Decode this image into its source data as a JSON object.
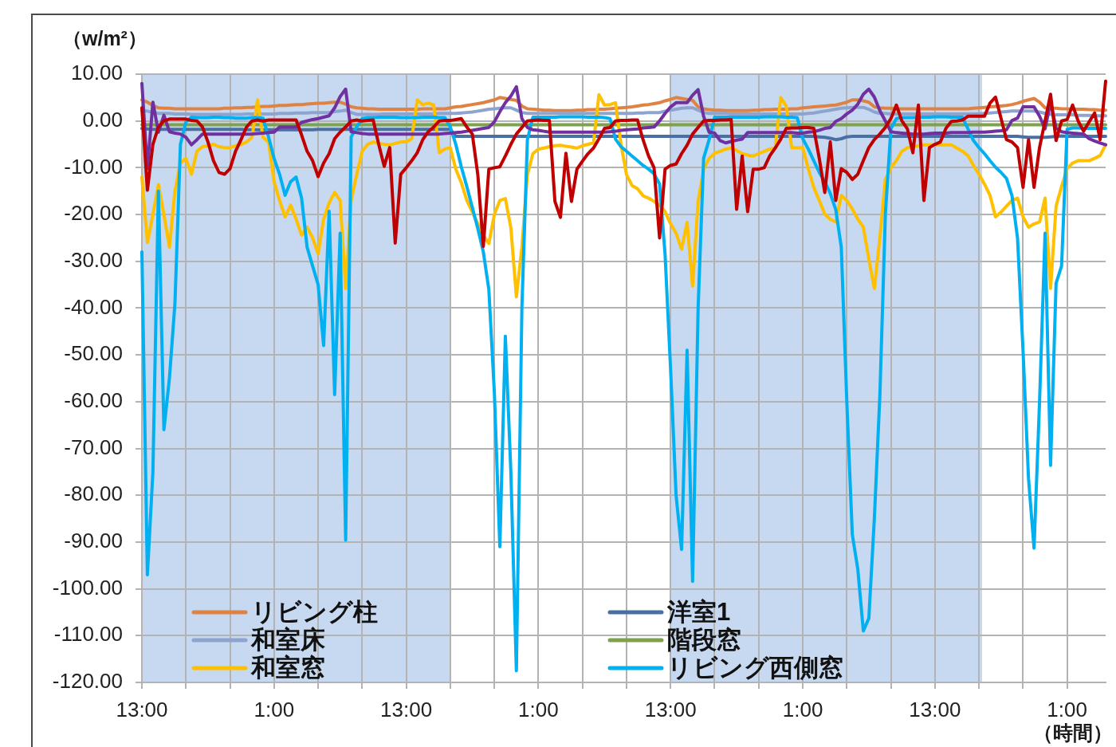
{
  "chart_data": {
    "type": "line",
    "ylabel": "（w/m²）",
    "xlabel": "（時間）",
    "categories": [
      "13:00",
      null,
      null,
      null,
      null,
      null,
      null,
      null,
      null,
      null,
      null,
      null,
      null,
      null,
      null,
      null,
      null,
      null,
      null,
      null,
      null,
      null,
      null,
      null,
      "1:00",
      null,
      null,
      null,
      null,
      null,
      null,
      null,
      null,
      null,
      null,
      null,
      null,
      null,
      null,
      null,
      null,
      null,
      null,
      null,
      null,
      null,
      null,
      null,
      "13:00",
      null,
      null,
      null,
      null,
      null,
      null,
      null,
      null,
      null,
      null,
      null,
      null,
      null,
      null,
      null,
      null,
      null,
      null,
      null,
      null,
      null,
      null,
      null,
      "1:00",
      null,
      null,
      null,
      null,
      null,
      null,
      null,
      null,
      null,
      null,
      null,
      null,
      null,
      null,
      null,
      null,
      null,
      null,
      null,
      null,
      null,
      null,
      null,
      "13:00",
      null,
      null,
      null,
      null,
      null,
      null,
      null,
      null,
      null,
      null,
      null,
      null,
      null,
      null,
      null,
      null,
      null,
      null,
      null,
      null,
      null,
      null,
      null,
      "1:00",
      null,
      null,
      null,
      null,
      null,
      null,
      null,
      null,
      null,
      null,
      null,
      null,
      null,
      null,
      null,
      null,
      null,
      null,
      null,
      null,
      null,
      null,
      null,
      "13:00",
      null,
      null,
      null,
      null,
      null,
      null,
      null,
      null,
      null,
      null,
      null,
      null,
      null,
      null,
      null,
      null,
      null,
      null,
      null,
      null,
      null,
      null,
      null,
      "1:00",
      null,
      null,
      null,
      null,
      null,
      null,
      null
    ],
    "ylim": [
      -120,
      10
    ],
    "yticks": [
      {
        "value": 10,
        "label": "10.00"
      },
      {
        "value": 0,
        "label": "0.00"
      },
      {
        "value": -10,
        "label": "-10.00"
      },
      {
        "value": -20,
        "label": "-20.00"
      },
      {
        "value": -30,
        "label": "-30.00"
      },
      {
        "value": -40,
        "label": "-40.00"
      },
      {
        "value": -50,
        "label": "-50.00"
      },
      {
        "value": -60,
        "label": "-60.00"
      },
      {
        "value": -70,
        "label": "-70.00"
      },
      {
        "value": -80,
        "label": "-80.00"
      },
      {
        "value": -90,
        "label": "-90.00"
      },
      {
        "value": -100,
        "label": "-100.00"
      },
      {
        "value": -110,
        "label": "-110.00"
      },
      {
        "value": -120,
        "label": "-120.00"
      }
    ],
    "grid": true,
    "legend": "bottom left",
    "series": [
      {
        "name": "リビング柱",
        "color": "#df8344",
        "values": [
          4.5,
          4,
          3.3,
          2.8,
          2.7,
          2.7,
          2.6,
          2.6,
          2.6,
          2.6,
          2.6,
          2.6,
          2.6,
          2.6,
          2.6,
          2.7,
          2.7,
          2.8,
          2.8,
          2.9,
          2.9,
          3,
          3.1,
          3.1,
          3.2,
          3.3,
          3.3,
          3.4,
          3.5,
          3.5,
          3.6,
          3.7,
          3.8,
          3.8,
          3.9,
          4,
          4,
          3.6,
          3,
          2.8,
          2.7,
          2.6,
          2.6,
          2.5,
          2.5,
          2.5,
          2.5,
          2.5,
          2.5,
          2.5,
          2.5,
          2.6,
          2.6,
          2.6,
          2.6,
          2.6,
          2.8,
          3,
          3.1,
          3.3,
          3.5,
          3.7,
          3.9,
          4.2,
          4.5,
          5,
          4.8,
          4.6,
          4.4,
          3.2,
          2.6,
          2.5,
          2.4,
          2.3,
          2.3,
          2.2,
          2.2,
          2.2,
          2.2,
          2.3,
          2.3,
          2.4,
          2.4,
          2.5,
          2.5,
          2.6,
          2.7,
          2.8,
          2.9,
          3,
          3.2,
          3.4,
          3.5,
          3.7,
          3.9,
          4.3,
          4.6,
          5,
          4.8,
          4.6,
          4.4,
          3,
          2.6,
          2.4,
          2.3,
          2.3,
          2.2,
          2.2,
          2.2,
          2.2,
          2.2,
          2.3,
          2.3,
          2.4,
          2.4,
          2.5,
          2.5,
          2.5,
          2.6,
          2.6,
          2.8,
          2.9,
          3,
          3.1,
          3.2,
          3.3,
          3.4,
          3.7,
          4,
          4.5,
          4.5,
          4.3,
          4,
          3,
          2.8,
          2.7,
          2.7,
          2.6,
          2.6,
          2.6,
          2.6,
          2.6,
          2.6,
          2.6,
          2.6,
          2.6,
          2.6,
          2.6,
          2.6,
          2.6,
          2.6,
          2.7,
          2.8,
          2.9,
          3,
          3.1,
          3.2,
          3.3,
          3.5,
          3.8,
          4.2,
          4.5,
          4.8,
          4,
          2.8,
          2.7,
          2.7,
          2.6,
          2.6,
          2.5,
          2.5,
          2.5,
          2.4,
          2.4,
          2.3,
          2.3
        ]
      },
      {
        "name": "洋室1",
        "color": "#4a6fa5",
        "values": [
          -1.6,
          -1.7,
          -1.8,
          -1.8,
          -1.8,
          -1.8,
          -1.8,
          -1.8,
          -1.8,
          -1.8,
          -1.8,
          -1.8,
          -1.8,
          -1.8,
          -1.8,
          -1.8,
          -1.8,
          -1.8,
          -1.8,
          -1.9,
          -1.9,
          -1.9,
          -1.9,
          -1.9,
          -1.9,
          -1.9,
          -1.9,
          -1.9,
          -1.9,
          -1.9,
          -1.9,
          -1.9,
          -1.8,
          -1.8,
          -1.8,
          -1.8,
          -1.8,
          -1.8,
          -1.8,
          -1.8,
          -1.8,
          -1.8,
          -1.8,
          -1.8,
          -1.8,
          -1.8,
          -1.8,
          -1.8,
          -1.8,
          -1.8,
          -1.8,
          -1.8,
          -1.8,
          -1.8,
          -1.8,
          -1.8,
          -1.8,
          -3.3,
          -3.3,
          -3.3,
          -3.3,
          -3.3,
          -3.3,
          -3.3,
          -3.3,
          -3.3,
          -3.3,
          -3.3,
          -3.3,
          -3.3,
          -3.3,
          -3.3,
          -3.3,
          -3.3,
          -3.3,
          -3.3,
          -3.3,
          -3.3,
          -3.3,
          -3.3,
          -3.3,
          -3.3,
          -3.3,
          -3.3,
          -3.3,
          -3.3,
          -3.3,
          -3.3,
          -3.3,
          -3.3,
          -3.3,
          -3.3,
          -3.3,
          -3.3,
          -3.3,
          -3.3,
          -3.3,
          -3.3,
          -3.3,
          -3.3,
          -3.3,
          -3.3,
          -3.3,
          -3.3,
          -3.3,
          -3.3,
          -3.3,
          -3.3,
          -3.3,
          -3.3,
          -3.3,
          -3.3,
          -3.3,
          -3.3,
          -3.3,
          -3.3,
          -3.3,
          -3.3,
          -3.3,
          -3.3,
          -3.3,
          -3.3,
          -3.3,
          -3.4,
          -3.5,
          -3.7,
          -4,
          -3.8,
          -3.4,
          -3.3,
          -3.3,
          -3.3,
          -3.3,
          -3.3,
          -3.3,
          -3.3,
          -3.3,
          -3.3,
          -3.3,
          -3.3,
          -3.3,
          -3.3,
          -3.3,
          -3.3,
          -3.3,
          -3.3,
          -3.3,
          -3.3,
          -3.3,
          -3.3,
          -3.3,
          -3.3,
          -3.3,
          -3.3,
          -3.3,
          -3.3,
          -3.3,
          -3.3,
          -3.3,
          -3.3,
          -3.4,
          -3.5,
          -3.5,
          -3.5,
          -3.5,
          -3.4,
          -3.3,
          -3.2,
          -3.3,
          -3.3,
          -3.3,
          -3.3,
          -3.3,
          -3.3,
          -3.3,
          -3.3
        ]
      },
      {
        "name": "和室床",
        "color": "#8ea4cf",
        "values": [
          2.3,
          2.1,
          1.8,
          1.6,
          1.6,
          1.6,
          1.5,
          1.5,
          1.5,
          1.4,
          1.4,
          1.4,
          1.4,
          1.4,
          1.4,
          1.4,
          1.4,
          1.4,
          1.4,
          1.5,
          1.5,
          1.5,
          1.5,
          1.5,
          1.5,
          1.6,
          1.6,
          1.6,
          1.7,
          1.7,
          1.7,
          1.8,
          1.8,
          1.8,
          1.8,
          2,
          2.1,
          2.3,
          1.8,
          1.4,
          1.4,
          1.4,
          1.4,
          1.4,
          1.5,
          1.5,
          1.5,
          1.5,
          1.5,
          1.5,
          1.5,
          1.5,
          1.5,
          1.5,
          1.6,
          1.6,
          1.6,
          1.6,
          1.7,
          1.8,
          1.9,
          2.1,
          2.3,
          2.5,
          2.6,
          2.7,
          2.8,
          2.8,
          2.3,
          1.8,
          1.6,
          1.6,
          1.6,
          1.6,
          1.6,
          1.6,
          1.6,
          1.6,
          1.6,
          1.6,
          1.6,
          1.6,
          1.6,
          1.6,
          1.6,
          1.6,
          1.6,
          1.6,
          1.6,
          1.6,
          1.7,
          1.7,
          1.8,
          1.8,
          1.8,
          2.1,
          2.3,
          2.5,
          2.7,
          2.8,
          2.8,
          2.3,
          1.8,
          1.6,
          1.6,
          1.6,
          1.6,
          1.5,
          1.5,
          1.5,
          1.5,
          1.5,
          1.5,
          1.5,
          1.5,
          1.5,
          1.5,
          1.5,
          1.5,
          1.5,
          1.5,
          1.6,
          1.7,
          1.9,
          2.1,
          2.3,
          2.5,
          2.7,
          2.8,
          2.9,
          2.9,
          2.9,
          2.5,
          1.9,
          1.6,
          1.6,
          1.5,
          1.5,
          1.5,
          1.5,
          1.5,
          1.5,
          1.5,
          1.5,
          1.5,
          1.5,
          1.5,
          1.5,
          1.5,
          1.5,
          1.5,
          1.5,
          1.5,
          1.6,
          1.7,
          1.8,
          1.9,
          2,
          2.1,
          2.1,
          2.1,
          2.1,
          2.1,
          1.9,
          1.6,
          1.4,
          1.3,
          1.3,
          1.3,
          1.3,
          1.2,
          1.2,
          1.2,
          1.1,
          1.1,
          1.1
        ]
      },
      {
        "name": "階段窓",
        "color": "#7ea34c",
        "values": [
          -0.8,
          -0.8,
          -0.8,
          -0.8,
          -0.8,
          -0.8,
          -0.8,
          -0.8,
          -0.8,
          -0.8,
          -0.8,
          -0.8,
          -0.8,
          -0.8,
          -0.8,
          -0.8,
          -0.8,
          -0.8,
          -0.8,
          -0.8,
          -0.8,
          -0.8,
          -0.8,
          -0.8,
          -0.8,
          -0.8,
          -0.8,
          -0.8,
          -0.8,
          -0.8,
          -0.8,
          -0.8,
          -0.8,
          -0.8,
          -0.8,
          -0.8,
          -0.8,
          -0.8,
          -0.8,
          -0.8,
          -0.8,
          -0.8,
          -0.8,
          -0.8,
          -0.8,
          -0.8,
          -0.8,
          -0.8,
          -0.8,
          -0.8,
          -0.8,
          -0.8,
          -0.8,
          -0.8,
          -0.8,
          -0.8,
          -0.8,
          -0.8,
          -0.8,
          -0.8,
          -0.8,
          -0.8,
          -0.8,
          -0.8,
          -0.8,
          -0.8,
          -0.8,
          -0.8,
          -0.8,
          -0.8,
          -0.8,
          -0.8,
          -0.8,
          -0.8,
          -0.8,
          -0.8,
          -0.8,
          -0.8,
          -0.8,
          -0.8,
          -0.8,
          -0.8,
          -0.8,
          -0.8,
          -0.8,
          -0.8,
          -0.8,
          -0.8,
          -0.8,
          -0.8,
          -0.8,
          -0.8,
          -0.8,
          -0.8,
          -0.8,
          -0.8,
          -0.8,
          -0.8,
          -0.8,
          -0.8,
          -0.8,
          -0.8,
          -0.8,
          -0.8,
          -0.8,
          -0.8,
          -0.8,
          -0.8,
          -0.8,
          -0.8,
          -0.8,
          -0.8,
          -0.8,
          -0.8,
          -0.8,
          -0.8,
          -0.8,
          -0.8,
          -0.8,
          -0.8,
          -0.8,
          -0.8,
          -0.8,
          -0.8,
          -0.8,
          -0.8,
          -0.8,
          -0.8,
          -0.8,
          -0.8,
          -0.8,
          -0.8,
          -0.8,
          -0.8,
          -0.8,
          -0.8,
          -0.8,
          -0.8,
          -0.8,
          -0.8,
          -0.8,
          -0.8,
          -0.8,
          -0.8,
          -0.8,
          -0.8,
          -0.8,
          -0.8,
          -0.8,
          -0.8,
          -0.8,
          -0.8,
          -0.8,
          -0.8,
          -0.8,
          -0.8,
          -0.8,
          -0.8,
          -0.8,
          -0.8,
          -0.8,
          -0.8,
          -0.8,
          -0.8,
          -0.8,
          -0.8,
          -0.8,
          -0.8,
          -0.8,
          -0.8,
          -0.8,
          -0.8,
          -0.8,
          -0.8,
          -0.8,
          -0.8
        ]
      },
      {
        "name": "和室窓",
        "color": "#ffc000",
        "values": [
          -12,
          -26,
          -20,
          -13.6,
          -20,
          -27,
          -15,
          -9,
          -8,
          -11.4,
          -6.5,
          -5.5,
          -5.3,
          -5,
          -5.5,
          -5.7,
          -5.7,
          -5.3,
          -5,
          -4.5,
          -3.5,
          4.5,
          -3.5,
          -4.5,
          -13,
          -17,
          -20.5,
          -18,
          -21,
          -24.4,
          -22.7,
          -25,
          -28.4,
          -21,
          -17.5,
          -15.3,
          -17,
          -35.8,
          -17,
          -11.5,
          -6.5,
          -5,
          -4.5,
          -4.8,
          -5,
          -5.1,
          -4.8,
          -4.5,
          -4.5,
          -3.8,
          4.5,
          3.5,
          3.8,
          3.4,
          -6.8,
          -6,
          -5.7,
          -10.3,
          -13.2,
          -17,
          -19.4,
          -22,
          -24.5,
          -26.2,
          -20,
          -17,
          -16.6,
          -22.8,
          -37.6,
          -27,
          -11.5,
          -7,
          -6,
          -5.8,
          -5.5,
          -5.3,
          -5.2,
          -5.4,
          -5.6,
          -5.8,
          -5.3,
          -5,
          -4.7,
          5.6,
          3.4,
          3.5,
          3.9,
          -5,
          -11.5,
          -13.8,
          -14.5,
          -16,
          -16.5,
          -17.2,
          -18,
          -19.4,
          -22,
          -24,
          -27.4,
          -21.7,
          -35.3,
          -17.2,
          -10.3,
          -8,
          -6.9,
          -6.5,
          -6,
          -5.8,
          -6.3,
          -7,
          -7.3,
          -7.5,
          -7,
          -6.5,
          -6,
          -5.8,
          5,
          3.2,
          -5.7,
          -5.7,
          -5.7,
          -10.2,
          -14.2,
          -17,
          -19.9,
          -21,
          -21.6,
          -15.9,
          -17,
          -18.8,
          -21,
          -22.7,
          -29.5,
          -35.8,
          -25,
          -12.5,
          -10,
          -8.5,
          -6.5,
          -5.7,
          -5.5,
          -5.3,
          -5.1,
          -5.1,
          -5.1,
          -5.1,
          -5.1,
          -5.1,
          -5.8,
          -6.5,
          -7.4,
          -9.5,
          -11.4,
          -13.5,
          -15.9,
          -20.5,
          -19.5,
          -18.2,
          -17,
          -16.5,
          -20.5,
          -22.7,
          -22,
          -21.6,
          -16.5,
          -35.8,
          -18.2,
          -14,
          -10.2,
          -9,
          -8.5,
          -8.5,
          -8.5,
          -8,
          -7.4,
          -5.1
        ]
      },
      {
        "name": "リビング西側窓",
        "color": "#00b0f0",
        "values": [
          -28,
          -97,
          -75,
          -15,
          -66,
          -55,
          -39,
          -5,
          -0.2,
          0.8,
          0.7,
          0.7,
          0.7,
          0.8,
          0.8,
          0.7,
          0.7,
          0.6,
          0.6,
          0.6,
          0.7,
          0.7,
          0.6,
          -3.4,
          -8,
          -11.4,
          -15.9,
          -13,
          -12,
          -16.5,
          -27,
          -31,
          -35,
          -48,
          -19.3,
          -58.5,
          -24,
          -89.6,
          -3.4,
          -1.3,
          0.5,
          0.7,
          0.7,
          0.8,
          0.8,
          0.8,
          0.8,
          0.7,
          0.7,
          0.7,
          0.7,
          0.8,
          0.8,
          0.8,
          0.7,
          0.7,
          -1.3,
          -5,
          -9.8,
          -14,
          -18.5,
          -23,
          -28,
          -36,
          -58,
          -91,
          -46,
          -75,
          -117.5,
          -40,
          -4,
          0.8,
          0.8,
          0.8,
          0.8,
          0.8,
          0.9,
          0.9,
          0.9,
          0.9,
          0.9,
          0.8,
          0.8,
          0.8,
          0.7,
          0.5,
          -3.9,
          -5.5,
          -6.5,
          -7.5,
          -8.5,
          -9.5,
          -10.3,
          -11.3,
          -13.5,
          -28.5,
          -53,
          -80,
          -91.6,
          -49,
          -98.4,
          -40,
          -8,
          -4,
          0.8,
          0.8,
          0.8,
          0.8,
          0.8,
          0.8,
          0.8,
          0.8,
          0.8,
          0.9,
          0.9,
          0.9,
          0.9,
          0.8,
          0.8,
          0.7,
          -3.8,
          -6,
          -8.5,
          -11,
          -13,
          -15.5,
          -19,
          -27,
          -60,
          -88.4,
          -95.8,
          -109,
          -106.3,
          -85,
          -58.8,
          -20,
          -1.7,
          0.5,
          0.7,
          0.7,
          0.7,
          0.8,
          0.8,
          0.8,
          0.9,
          0.9,
          0.9,
          0.8,
          0.8,
          0.8,
          -1.7,
          -4.2,
          -5.7,
          -7,
          -8.5,
          -9.9,
          -11,
          -12.3,
          -16,
          -25,
          -49,
          -76.5,
          -91.3,
          -60,
          -24,
          -73.6,
          -34.7,
          -31,
          -1.8,
          -1.5,
          -1.5,
          -1.6,
          -1.6,
          -1.6,
          -1.6,
          -1.6
        ]
      },
      {
        "color": "#7030a0",
        "values": [
          8,
          -10.2,
          4,
          -2.4,
          1.2,
          -2.3,
          -2.6,
          -2.8,
          -3.5,
          -5.1,
          -4,
          -2.8,
          -2.8,
          -2.8,
          -2.8,
          -2.8,
          -2.8,
          -2.8,
          -2.8,
          -2.8,
          -2.8,
          -2.7,
          -2.6,
          -2.5,
          -2.4,
          -1.3,
          -1.3,
          -1.3,
          -1.3,
          -0.3,
          0,
          0.3,
          0.5,
          0.8,
          1.1,
          2.8,
          5.2,
          6.8,
          -2.3,
          -2.5,
          -2.7,
          -2.8,
          -2.8,
          -2.8,
          -2.8,
          -2.8,
          -2.8,
          -2.8,
          -2.8,
          -2.8,
          -2.8,
          -2.8,
          -2.8,
          -2.8,
          -2.8,
          -2.7,
          -2.6,
          -2.5,
          -2.4,
          -2.2,
          -2,
          -1.8,
          -1.6,
          -1.4,
          -0.2,
          2,
          3.9,
          5.3,
          7.3,
          0.5,
          -1.4,
          -1.9,
          -2,
          -2.2,
          -2.4,
          -2.4,
          -2.4,
          -2.4,
          -2.4,
          -2.4,
          -2.4,
          -2.4,
          -2.4,
          -2.4,
          -2.4,
          -2.3,
          -2.2,
          -2,
          -1.9,
          -1.8,
          -1.7,
          -1.5,
          -1.4,
          -1.3,
          0,
          1.6,
          3,
          3.9,
          3.9,
          3.9,
          5.5,
          6.7,
          1,
          -2.4,
          -2.6,
          -4.2,
          -4.7,
          -4.4,
          -4.1,
          -3.9,
          -2.5,
          -2.5,
          -2.5,
          -2.5,
          -2.5,
          -2.5,
          -2.5,
          -2.5,
          -2.5,
          -2.6,
          -2.6,
          -2.4,
          -2.3,
          -2,
          -1.6,
          -1.4,
          -0.1,
          0.5,
          1.5,
          2.3,
          3.6,
          5.7,
          6.8,
          5.1,
          2.2,
          0,
          -2.3,
          -2.5,
          -2.6,
          -2.7,
          -2.8,
          -2.8,
          -2.8,
          -2.7,
          -2.6,
          -2.6,
          -2.6,
          -2.5,
          -2.5,
          -2.5,
          -2.5,
          -2.4,
          -2.4,
          -2.4,
          -2.3,
          -2.2,
          -2.1,
          -1.9,
          0.1,
          0.6,
          3,
          3,
          3,
          1,
          -1.7,
          4,
          -1.5,
          -2.3,
          -2.5,
          -2.6,
          -2.7,
          -2.8,
          -3.8,
          -4.3,
          -4.7,
          -5.1
        ]
      },
      {
        "color": "#c00000",
        "values": [
          2.8,
          -14.8,
          -5,
          -1.3,
          0,
          0.4,
          0.4,
          0.4,
          0.4,
          0.1,
          0,
          -1.3,
          -4.5,
          -8.5,
          -11,
          -11.4,
          -10.2,
          -6.5,
          -4,
          -1.3,
          0,
          0.2,
          0,
          0.2,
          0.2,
          0.2,
          0.2,
          0.2,
          0.2,
          -3,
          -6.5,
          -8.5,
          -11.9,
          -9,
          -7,
          -3.8,
          -2.4,
          -1.3,
          0,
          0.2,
          0,
          0.1,
          0.2,
          -5,
          -9.7,
          -5.7,
          -26.1,
          -11.4,
          -10,
          -8.5,
          -6.8,
          -4,
          -2.3,
          -1.3,
          0,
          0.1,
          0.1,
          0.3,
          0.5,
          -1.3,
          -2.8,
          -11.5,
          -26.8,
          -10.3,
          -10,
          -9.8,
          -7.5,
          -5,
          -2.8,
          -1.4,
          0,
          0.1,
          0.2,
          0.1,
          0.1,
          -17.2,
          -20.6,
          -6.9,
          -17.2,
          -10.3,
          -8.6,
          -7,
          -5.8,
          -3.8,
          -1.6,
          -1.4,
          0,
          0.1,
          0.1,
          0.2,
          0.2,
          -4,
          -7.5,
          -10,
          -25,
          -10.3,
          -9.5,
          -9.2,
          -7,
          -5.2,
          -2.8,
          -1.4,
          0,
          0.1,
          0.1,
          0.2,
          0.2,
          0.3,
          -18.9,
          -7.5,
          -19.4,
          -10.3,
          -10.3,
          -10,
          -7.5,
          -5.8,
          -3.9,
          -1.6,
          -1.5,
          -1.5,
          -1.4,
          -1.4,
          -1.6,
          -8,
          -15.3,
          -4.5,
          -17,
          -10.2,
          -11,
          -12.5,
          -11.4,
          -8.5,
          -5.7,
          -4,
          -2.8,
          -1.4,
          0.5,
          3.4,
          0,
          -1.7,
          -6.8,
          3.4,
          -17,
          -5.7,
          -5,
          -4.5,
          -1.6,
          -0.1,
          0,
          0.2,
          1,
          1,
          1,
          1,
          3.8,
          5.1,
          0.6,
          -4,
          -4.5,
          -5.7,
          -14.2,
          -4,
          -14.2,
          -5.7,
          0,
          5.7,
          -4.2,
          0,
          0.3,
          3.4,
          0,
          -2.2,
          -0.2,
          1.7,
          -4,
          8.5
        ]
      }
    ]
  }
}
